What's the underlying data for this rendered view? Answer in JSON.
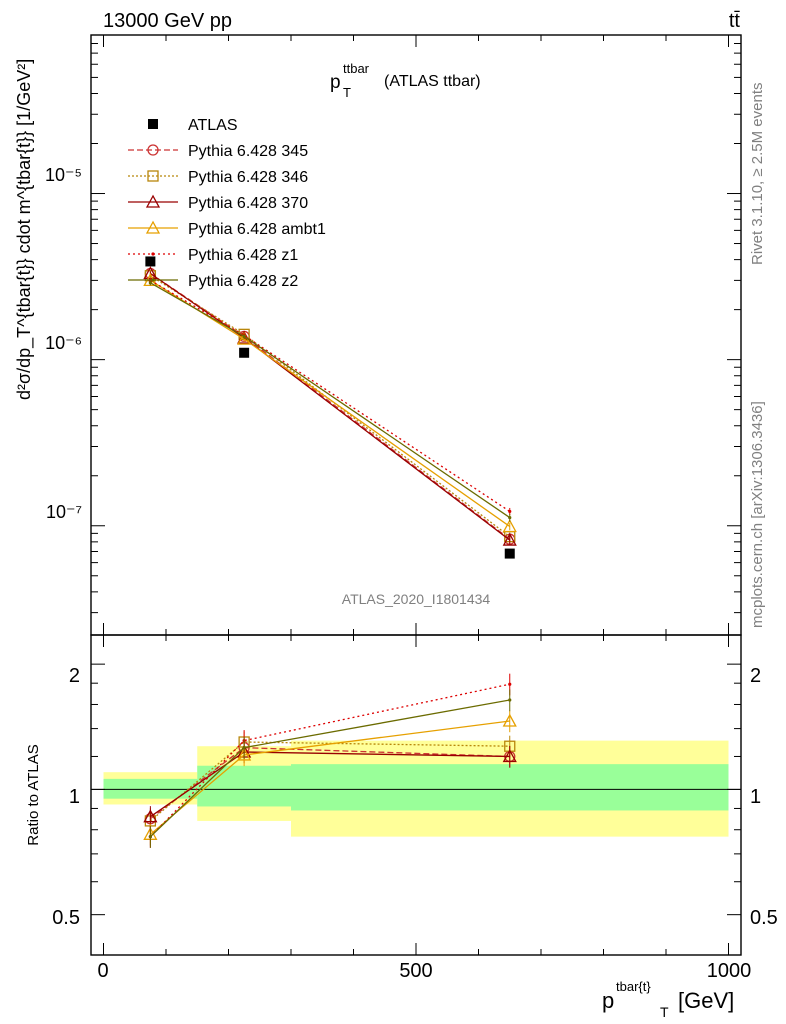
{
  "header": {
    "left": "13000 GeV pp",
    "right": "tt̄"
  },
  "side": {
    "rivet": "Rivet 3.1.10, ≥ 2.5M events",
    "mcplots": "mcplots.cern.ch [arXiv:1306.3436]"
  },
  "main": {
    "title_main": "p",
    "title_sup": "ttbar",
    "title_sub": "T",
    "title_rest": "(ATLAS ttbar)",
    "watermark": "ATLAS_2020_I1801434",
    "ylabel": "d²σ/dp_T^{tbar{t}} cdot m^{tbar{t}} [1/GeV²]",
    "ytick_labels": [
      "10⁻⁵",
      "10⁻⁶",
      "10⁻⁷"
    ]
  },
  "ratio": {
    "ylabel": "Ratio to ATLAS",
    "ytick_labels": [
      "2",
      "1",
      "0.5"
    ],
    "xtick_labels": [
      "0",
      "500",
      "1000"
    ],
    "xlabel": "p",
    "xlabel_sup": "tbar{t}",
    "xlabel_sub": "T",
    "xlabel_unit": "[GeV]"
  },
  "legend": [
    {
      "label": "ATLAS",
      "color": "#000000",
      "marker": "square-filled",
      "dash": ""
    },
    {
      "label": "Pythia 6.428 345",
      "color": "#cc3333",
      "marker": "circle-open",
      "dash": "6,3"
    },
    {
      "label": "Pythia 6.428 346",
      "color": "#b8860b",
      "marker": "square-open",
      "dash": "2,2"
    },
    {
      "label": "Pythia 6.428 370",
      "color": "#990000",
      "marker": "triangle-open",
      "dash": ""
    },
    {
      "label": "Pythia 6.428 ambt1",
      "color": "#e6a000",
      "marker": "triangle-open",
      "dash": ""
    },
    {
      "label": "Pythia 6.428 z1",
      "color": "#dd0000",
      "marker": "dot",
      "dash": "2,3"
    },
    {
      "label": "Pythia 6.428 z2",
      "color": "#6b6b00",
      "marker": "dot",
      "dash": ""
    }
  ],
  "chart_data": [
    {
      "type": "scatter",
      "panel": "main",
      "xlim": [
        -20,
        1020
      ],
      "ylim": [
        2.2e-08,
        9e-05
      ],
      "log_y": true,
      "x_bins": [
        [
          0,
          150
        ],
        [
          150,
          300
        ],
        [
          300,
          1000
        ]
      ],
      "x": [
        75,
        225,
        650
      ],
      "series": [
        {
          "name": "ATLAS",
          "values": [
            3.9e-06,
            1.1e-06,
            6.8e-08
          ],
          "errors": [
            2e-07,
            5e-08,
            4e-11
          ]
        },
        {
          "name": "Pythia 6.428 345",
          "values": [
            3.3e-06,
            1.38e-06,
            8.3e-08
          ],
          "errors": [
            1e-07,
            5e-08,
            5e-09
          ]
        },
        {
          "name": "Pythia 6.428 346",
          "values": [
            3.2e-06,
            1.42e-06,
            8.6e-08
          ],
          "errors": [
            1e-07,
            5e-08,
            5e-09
          ]
        },
        {
          "name": "Pythia 6.428 370",
          "values": [
            3.3e-06,
            1.35e-06,
            8.2e-08
          ],
          "errors": [
            1e-07,
            5e-08,
            5e-09
          ]
        },
        {
          "name": "Pythia 6.428 ambt1",
          "values": [
            3e-06,
            1.33e-06,
            9.9e-08
          ],
          "errors": [
            1e-07,
            5e-08,
            5e-09
          ]
        },
        {
          "name": "Pythia 6.428 z1",
          "values": [
            3e-06,
            1.4e-06,
            1.22e-07
          ],
          "errors": [
            1e-07,
            5e-08,
            6e-09
          ]
        },
        {
          "name": "Pythia 6.428 z2",
          "values": [
            2.9e-06,
            1.38e-06,
            1.12e-07
          ],
          "errors": [
            1e-07,
            5e-08,
            6e-09
          ]
        }
      ]
    },
    {
      "type": "scatter",
      "panel": "ratio",
      "xlim": [
        -20,
        1020
      ],
      "ylim": [
        0.4,
        2.35
      ],
      "log_y": true,
      "bands": [
        {
          "x": [
            0,
            150
          ],
          "inner": [
            0.95,
            1.06
          ],
          "outer": [
            0.92,
            1.1
          ]
        },
        {
          "x": [
            150,
            300
          ],
          "inner": [
            0.91,
            1.14
          ],
          "outer": [
            0.84,
            1.27
          ]
        },
        {
          "x": [
            300,
            1000
          ],
          "inner": [
            0.89,
            1.15
          ],
          "outer": [
            0.77,
            1.31
          ]
        }
      ],
      "x": [
        75,
        225,
        650
      ],
      "series": [
        {
          "name": "Pythia 6.428 345",
          "values": [
            0.85,
            1.26,
            1.2
          ]
        },
        {
          "name": "Pythia 6.428 346",
          "values": [
            0.84,
            1.3,
            1.27
          ]
        },
        {
          "name": "Pythia 6.428 370",
          "values": [
            0.86,
            1.23,
            1.2
          ]
        },
        {
          "name": "Pythia 6.428 ambt1",
          "values": [
            0.78,
            1.21,
            1.46
          ]
        },
        {
          "name": "Pythia 6.428 z1",
          "values": [
            0.77,
            1.31,
            1.79
          ]
        },
        {
          "name": "Pythia 6.428 z2",
          "values": [
            0.77,
            1.26,
            1.64
          ]
        }
      ]
    }
  ]
}
